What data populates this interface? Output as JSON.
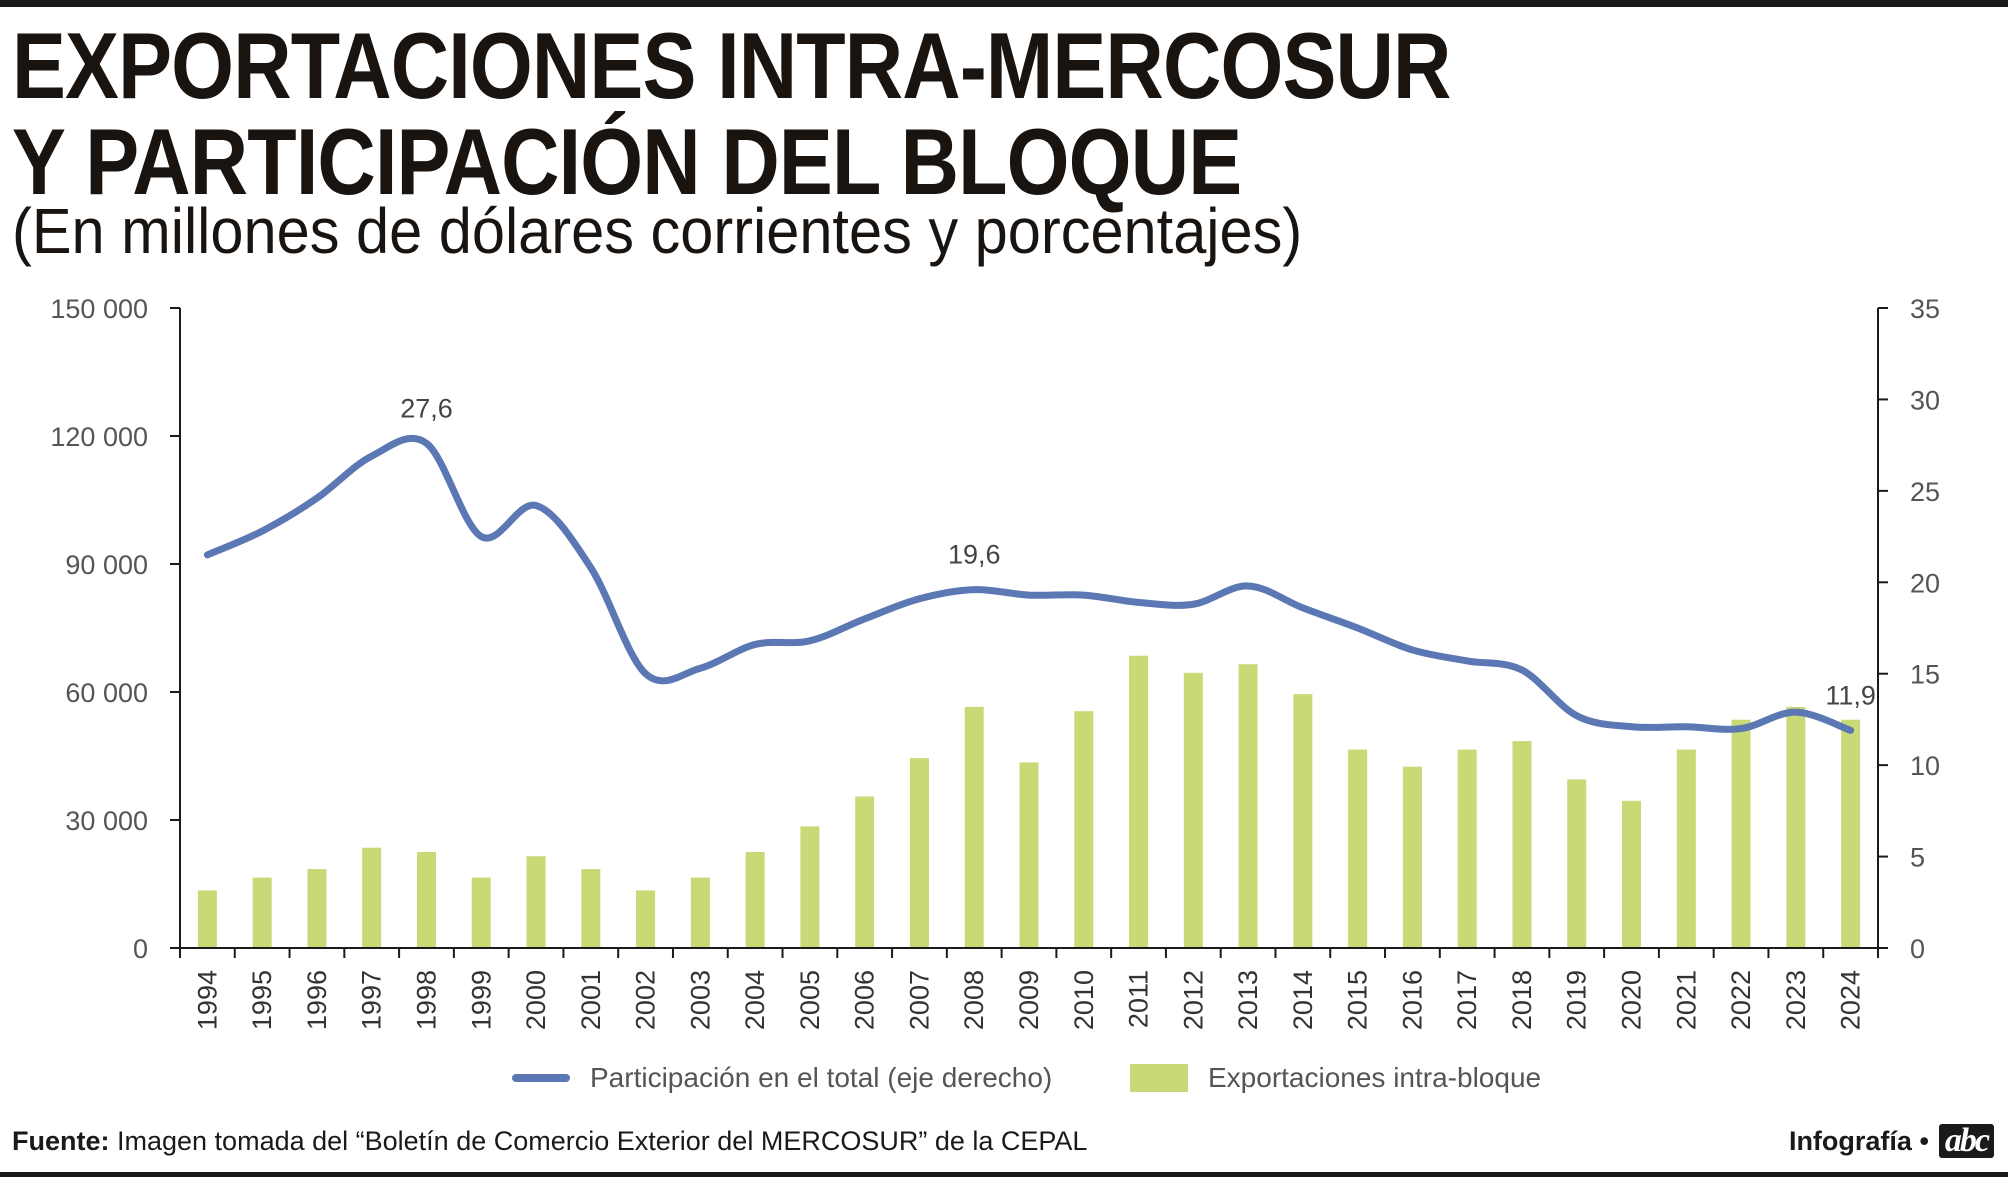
{
  "header": {
    "title_line1": "EXPORTACIONES INTRA-MERCOSUR",
    "title_line2": "Y PARTICIPACIÓN DEL BLOQUE",
    "subtitle": "(En millones de dólares corrientes y porcentajes)"
  },
  "colors": {
    "line": "#5b77b4",
    "bars": "#c8d976",
    "axis": "#1a1a1a"
  },
  "chart_data": {
    "type": "bar",
    "categories": [
      "1994",
      "1995",
      "1996",
      "1997",
      "1998",
      "1999",
      "2000",
      "2001",
      "2002",
      "2003",
      "2004",
      "2005",
      "2006",
      "2007",
      "2008",
      "2009",
      "2010",
      "2011",
      "2012",
      "2013",
      "2014",
      "2015",
      "2016",
      "2017",
      "2018",
      "2019",
      "2020",
      "2021",
      "2022",
      "2023",
      "2024"
    ],
    "series": [
      {
        "name": "Exportaciones intra-bloque",
        "type": "bar",
        "axis": "left",
        "values": [
          13500,
          16500,
          18500,
          23500,
          22500,
          16500,
          21500,
          18500,
          13500,
          16500,
          22500,
          28500,
          35500,
          44500,
          56500,
          43500,
          55500,
          68500,
          64500,
          66500,
          59500,
          46500,
          42500,
          46500,
          48500,
          39500,
          34500,
          46500,
          53500,
          56500,
          53500
        ]
      },
      {
        "name": "Participación en el total (eje derecho)",
        "type": "line",
        "axis": "right",
        "values": [
          21.5,
          22.8,
          24.6,
          26.9,
          27.6,
          22.5,
          24.2,
          20.8,
          15.0,
          15.3,
          16.6,
          16.8,
          18.0,
          19.1,
          19.6,
          19.3,
          19.3,
          18.9,
          18.8,
          19.8,
          18.6,
          17.5,
          16.3,
          15.7,
          15.2,
          12.7,
          12.1,
          12.1,
          12.0,
          12.9,
          11.9
        ]
      }
    ],
    "y_left": {
      "ylim": [
        0,
        150000
      ],
      "ticks": [
        "150 000",
        "120 000",
        "90 000",
        "60 000",
        "30 000",
        "0"
      ],
      "tick_values": [
        150000,
        120000,
        90000,
        60000,
        30000,
        0
      ]
    },
    "y_right": {
      "ylim": [
        0,
        35
      ],
      "ticks": [
        "35",
        "30",
        "25",
        "20",
        "15",
        "10",
        "5",
        "0"
      ],
      "tick_values": [
        35,
        30,
        25,
        20,
        15,
        10,
        5,
        0
      ]
    },
    "annotations": [
      {
        "text": "27,6",
        "year": "1998",
        "value": 27.6
      },
      {
        "text": "19,6",
        "year": "2008",
        "value": 19.6
      },
      {
        "text": "11,9",
        "year": "2024",
        "value": 11.9
      }
    ],
    "grid": false,
    "legend_position": "bottom-center"
  },
  "legend": {
    "line_label": "Participación en el total (eje derecho)",
    "bar_label": "Exportaciones intra-bloque"
  },
  "footer": {
    "source_label": "Fuente:",
    "source_text": " Imagen tomada del “Boletín de Comercio Exterior del MERCOSUR” de la CEPAL",
    "credit": "Infografía •",
    "logo": "abc"
  }
}
